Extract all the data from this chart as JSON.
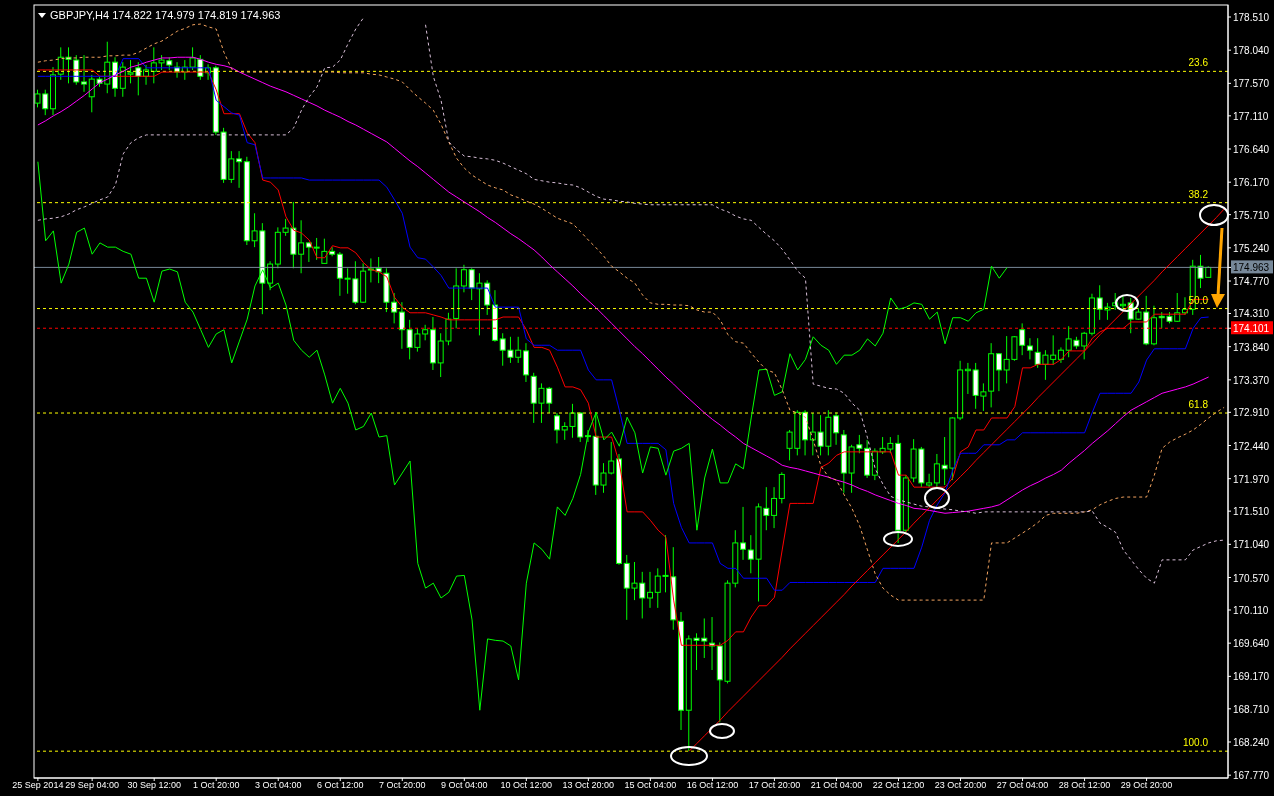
{
  "chart_data": {
    "type": "candlestick",
    "title": "GBPJPY,H4 174.822 174.979 174.819 174.963",
    "color": "#00ff00",
    "categories": [
      "25 Sep 2014",
      null,
      null,
      null,
      null,
      null,
      null,
      "29 Sep 04:00",
      null,
      null,
      null,
      null,
      null,
      null,
      null,
      "30 Sep 12:00",
      null,
      null,
      null,
      null,
      null,
      null,
      null,
      "1 Oct 20:00",
      null,
      null,
      null,
      null,
      null,
      null,
      null,
      "3 Oct 04:00",
      null,
      null,
      null,
      null,
      null,
      null,
      null,
      "6 Oct 12:00",
      null,
      null,
      null,
      null,
      null,
      null,
      null,
      "7 Oct 20:00",
      null,
      null,
      null,
      null,
      null,
      null,
      null,
      "9 Oct 04:00",
      null,
      null,
      null,
      null,
      null,
      null,
      null,
      "10 Oct 12:00",
      null,
      null,
      null,
      null,
      null,
      null,
      null,
      "13 Oct 20:00",
      null,
      null,
      null,
      null,
      null,
      null,
      null,
      "15 Oct 04:00",
      null,
      null,
      null,
      null,
      null,
      null,
      null,
      "16 Oct 12:00",
      null,
      null,
      null,
      null,
      null,
      null,
      null,
      "17 Oct 20:00",
      null,
      null,
      null,
      null,
      null,
      null,
      null,
      "21 Oct 04:00",
      null,
      null,
      null,
      null,
      null,
      null,
      null,
      "22 Oct 12:00",
      null,
      null,
      null,
      null,
      null,
      null,
      null,
      "23 Oct 20:00",
      null,
      null,
      null,
      null,
      null,
      null,
      null,
      "27 Oct 04:00",
      null,
      null,
      null,
      null,
      null,
      null,
      null,
      "28 Oct 12:00",
      null,
      null,
      null,
      null,
      null,
      null,
      null,
      "29 Oct 20:00",
      null,
      null,
      null,
      null,
      null,
      null,
      null,
      null,
      null,
      null
    ],
    "ohlc": [
      [
        177.29,
        177.48,
        177.23,
        177.42
      ],
      [
        177.42,
        177.48,
        177.12,
        177.21
      ],
      [
        177.21,
        177.8,
        177.12,
        177.69
      ],
      [
        177.7,
        178.08,
        177.62,
        177.94
      ],
      [
        177.94,
        178.08,
        177.57,
        177.91
      ],
      [
        177.9,
        177.97,
        177.55,
        177.59
      ],
      [
        177.59,
        177.97,
        177.45,
        177.56
      ],
      [
        177.38,
        177.69,
        177.16,
        177.63
      ],
      [
        177.63,
        177.67,
        177.52,
        177.57
      ],
      [
        177.56,
        178.16,
        177.43,
        177.87
      ],
      [
        177.87,
        177.94,
        177.38,
        177.5
      ],
      [
        177.5,
        177.87,
        177.38,
        177.8
      ],
      [
        177.7,
        177.9,
        177.57,
        177.72
      ],
      [
        177.79,
        177.87,
        177.4,
        177.67
      ],
      [
        177.67,
        177.83,
        177.55,
        177.76
      ],
      [
        177.74,
        178.08,
        177.57,
        177.86
      ],
      [
        177.86,
        177.97,
        177.76,
        177.9
      ],
      [
        177.89,
        177.94,
        177.76,
        177.83
      ],
      [
        177.8,
        177.87,
        177.65,
        177.73
      ],
      [
        177.73,
        177.9,
        177.62,
        177.8
      ],
      [
        177.8,
        178.08,
        177.76,
        177.93
      ],
      [
        177.91,
        177.97,
        177.62,
        177.67
      ],
      [
        177.72,
        177.84,
        177.62,
        177.79
      ],
      [
        177.79,
        177.82,
        176.84,
        176.88
      ],
      [
        176.88,
        176.94,
        176.16,
        176.21
      ],
      [
        176.21,
        176.61,
        176.16,
        176.5
      ],
      [
        176.5,
        176.61,
        176.09,
        176.46
      ],
      [
        176.46,
        176.53,
        175.28,
        175.34
      ],
      [
        175.34,
        175.73,
        175.25,
        175.48
      ],
      [
        175.48,
        175.59,
        174.3,
        174.74
      ],
      [
        174.74,
        175.05,
        174.64,
        175.01
      ],
      [
        175.01,
        175.53,
        174.95,
        175.46
      ],
      [
        175.46,
        175.65,
        175.41,
        175.52
      ],
      [
        175.52,
        175.89,
        174.95,
        175.15
      ],
      [
        175.15,
        175.63,
        174.88,
        175.31
      ],
      [
        175.31,
        175.32,
        175.04,
        175.25
      ],
      [
        175.24,
        175.38,
        175.07,
        175.25
      ],
      [
        175.02,
        175.37,
        175.02,
        175.19
      ],
      [
        175.19,
        175.25,
        175.12,
        175.15
      ],
      [
        175.15,
        175.18,
        174.56,
        174.81
      ],
      [
        174.8,
        174.95,
        174.59,
        174.81
      ],
      [
        174.8,
        175.05,
        174.44,
        174.47
      ],
      [
        174.47,
        175.02,
        174.46,
        174.91
      ],
      [
        174.93,
        175.09,
        174.75,
        174.94
      ],
      [
        174.95,
        175.11,
        174.74,
        174.9
      ],
      [
        174.88,
        174.95,
        174.33,
        174.47
      ],
      [
        174.47,
        174.6,
        174.17,
        174.33
      ],
      [
        174.33,
        174.47,
        173.81,
        174.08
      ],
      [
        174.08,
        174.22,
        173.66,
        173.83
      ],
      [
        173.83,
        174.1,
        173.77,
        174.02
      ],
      [
        174.02,
        174.15,
        173.93,
        174.08
      ],
      [
        174.08,
        174.26,
        173.51,
        173.61
      ],
      [
        173.61,
        174.03,
        173.41,
        173.92
      ],
      [
        173.92,
        174.32,
        173.86,
        174.23
      ],
      [
        174.24,
        174.95,
        174.1,
        174.7
      ],
      [
        174.7,
        175.0,
        174.61,
        174.93
      ],
      [
        174.93,
        174.95,
        174.5,
        174.67
      ],
      [
        174.66,
        174.88,
        174.0,
        174.74
      ],
      [
        174.74,
        174.78,
        174.29,
        174.43
      ],
      [
        174.43,
        174.64,
        173.91,
        173.93
      ],
      [
        173.95,
        174.03,
        173.57,
        173.79
      ],
      [
        173.79,
        173.98,
        173.61,
        173.69
      ],
      [
        173.69,
        173.98,
        173.61,
        173.79
      ],
      [
        173.78,
        173.89,
        173.34,
        173.44
      ],
      [
        173.42,
        173.47,
        172.76,
        173.04
      ],
      [
        173.04,
        173.32,
        172.76,
        173.25
      ],
      [
        173.25,
        173.27,
        172.9,
        173.04
      ],
      [
        172.86,
        172.9,
        172.47,
        172.66
      ],
      [
        172.66,
        172.77,
        172.52,
        172.71
      ],
      [
        172.71,
        173.03,
        172.55,
        172.9
      ],
      [
        172.9,
        172.91,
        172.49,
        172.56
      ],
      [
        172.57,
        172.66,
        172.49,
        172.58
      ],
      [
        172.57,
        172.91,
        171.74,
        171.88
      ],
      [
        171.88,
        172.19,
        171.77,
        172.05
      ],
      [
        172.05,
        172.49,
        172.03,
        172.22
      ],
      [
        172.25,
        172.32,
        170.75,
        170.77
      ],
      [
        170.77,
        170.89,
        169.97,
        170.42
      ],
      [
        170.42,
        170.79,
        170.25,
        170.49
      ],
      [
        170.49,
        170.65,
        169.99,
        170.28
      ],
      [
        170.28,
        170.65,
        170.14,
        170.36
      ],
      [
        170.36,
        170.7,
        170.14,
        170.59
      ],
      [
        170.59,
        171.17,
        170.36,
        170.6
      ],
      [
        170.58,
        171.0,
        169.83,
        169.97
      ],
      [
        169.95,
        170.08,
        168.41,
        168.69
      ],
      [
        168.69,
        169.75,
        168.11,
        169.7
      ],
      [
        169.71,
        169.78,
        169.26,
        169.68
      ],
      [
        169.71,
        169.99,
        169.43,
        169.67
      ],
      [
        169.64,
        170.01,
        169.26,
        169.6
      ],
      [
        169.6,
        169.65,
        168.52,
        169.12
      ],
      [
        169.1,
        170.53,
        169.07,
        170.49
      ],
      [
        170.49,
        171.24,
        170.43,
        171.06
      ],
      [
        171.06,
        171.57,
        170.82,
        170.97
      ],
      [
        170.96,
        171.17,
        170.63,
        170.83
      ],
      [
        170.83,
        171.62,
        170.23,
        171.57
      ],
      [
        171.55,
        171.85,
        171.24,
        171.45
      ],
      [
        171.45,
        171.85,
        171.27,
        171.69
      ],
      [
        171.69,
        172.06,
        171.62,
        172.03
      ],
      [
        172.4,
        172.66,
        172.23,
        172.63
      ],
      [
        172.4,
        172.94,
        172.3,
        172.91
      ],
      [
        172.91,
        172.94,
        172.3,
        172.52
      ],
      [
        172.52,
        172.9,
        172.3,
        172.63
      ],
      [
        172.63,
        172.87,
        172.3,
        172.43
      ],
      [
        172.43,
        172.94,
        172.3,
        172.84
      ],
      [
        172.86,
        172.91,
        172.45,
        172.62
      ],
      [
        172.59,
        172.66,
        171.77,
        172.05
      ],
      [
        172.05,
        172.45,
        171.77,
        172.42
      ],
      [
        172.45,
        172.59,
        172.33,
        172.4
      ],
      [
        172.4,
        172.52,
        171.98,
        172.02
      ],
      [
        172.02,
        172.4,
        171.95,
        172.36
      ],
      [
        172.35,
        172.56,
        172.32,
        172.4
      ],
      [
        172.39,
        172.56,
        172.33,
        172.47
      ],
      [
        172.47,
        172.59,
        171.06,
        171.24
      ],
      [
        171.24,
        172.02,
        171.2,
        171.98
      ],
      [
        171.98,
        172.53,
        171.92,
        172.39
      ],
      [
        172.39,
        172.42,
        171.85,
        171.91
      ],
      [
        171.88,
        172.04,
        171.85,
        171.91
      ],
      [
        171.91,
        172.32,
        171.85,
        172.18
      ],
      [
        172.16,
        172.56,
        171.88,
        172.11
      ],
      [
        172.12,
        172.84,
        171.95,
        172.83
      ],
      [
        172.83,
        173.64,
        172.8,
        173.51
      ],
      [
        173.5,
        173.61,
        173.17,
        173.52
      ],
      [
        173.51,
        173.61,
        172.96,
        173.15
      ],
      [
        173.14,
        173.32,
        172.93,
        173.2
      ],
      [
        173.21,
        173.89,
        172.98,
        173.74
      ],
      [
        173.74,
        173.75,
        173.21,
        173.51
      ],
      [
        173.51,
        173.99,
        173.32,
        173.66
      ],
      [
        173.66,
        173.99,
        173.64,
        173.98
      ],
      [
        174.08,
        174.17,
        173.72,
        173.86
      ],
      [
        173.85,
        173.96,
        173.66,
        173.79
      ],
      [
        173.76,
        173.96,
        173.54,
        173.59
      ],
      [
        173.59,
        173.79,
        173.37,
        173.72
      ],
      [
        173.66,
        174.0,
        173.58,
        173.72
      ],
      [
        173.66,
        173.83,
        173.61,
        173.79
      ],
      [
        173.79,
        174.13,
        173.69,
        173.95
      ],
      [
        173.93,
        173.98,
        173.81,
        173.85
      ],
      [
        173.85,
        174.05,
        173.66,
        174.03
      ],
      [
        174.03,
        174.59,
        174.0,
        174.53
      ],
      [
        174.53,
        174.71,
        174.22,
        174.37
      ],
      [
        174.36,
        174.46,
        174.22,
        174.4
      ],
      [
        174.42,
        174.6,
        174.36,
        174.46
      ],
      [
        174.42,
        174.56,
        174.36,
        174.44
      ],
      [
        174.46,
        174.53,
        174.03,
        174.23
      ],
      [
        174.23,
        174.39,
        174.22,
        174.33
      ],
      [
        174.33,
        174.56,
        173.86,
        173.88
      ],
      [
        173.88,
        174.42,
        173.86,
        174.25
      ],
      [
        174.27,
        174.33,
        174.1,
        174.25
      ],
      [
        174.27,
        174.33,
        174.17,
        174.2
      ],
      [
        174.2,
        174.6,
        174.19,
        174.32
      ],
      [
        174.32,
        174.54,
        174.29,
        174.37
      ],
      [
        174.37,
        175.07,
        174.29,
        174.98
      ],
      [
        174.98,
        175.14,
        174.67,
        174.81
      ],
      [
        174.822,
        174.979,
        174.819,
        174.963
      ],
      null,
      null
    ],
    "series": [
      {
        "type": "line",
        "color": "#ff0000",
        "values": [
          177.76,
          177.76,
          177.76,
          177.76,
          177.76,
          177.76,
          177.76,
          177.76,
          177.67,
          177.67,
          177.67,
          177.67,
          177.67,
          177.67,
          177.67,
          177.67,
          177.73,
          177.73,
          177.73,
          177.73,
          177.73,
          177.73,
          177.73,
          177.48,
          177.14,
          177.14,
          177.14,
          176.87,
          176.73,
          176.2,
          176.17,
          176.06,
          175.68,
          175.49,
          175.45,
          175.35,
          175.1,
          175.1,
          175.27,
          175.24,
          175.24,
          175.17,
          175.03,
          174.93,
          174.9,
          174.83,
          174.54,
          174.4,
          174.32,
          174.32,
          174.32,
          174.29,
          174.26,
          174.22,
          174.22,
          174.22,
          174.22,
          174.22,
          174.22,
          174.22,
          174.26,
          174.26,
          174.26,
          174.08,
          173.83,
          173.83,
          173.79,
          173.55,
          173.27,
          173.27,
          173.23,
          173.04,
          172.56,
          172.56,
          172.56,
          172.19,
          171.5,
          171.5,
          171.5,
          171.38,
          171.24,
          171.14,
          170.25,
          169.61,
          169.61,
          169.61,
          169.61,
          169.61,
          169.61,
          169.68,
          169.8,
          169.8,
          170.01,
          170.17,
          170.17,
          170.29,
          170.96,
          171.62,
          171.62,
          171.62,
          171.62,
          172.13,
          172.19,
          172.3,
          172.35,
          172.35,
          172.35,
          172.35,
          172.35,
          172.35,
          172.35,
          172.02,
          172.02,
          171.85,
          171.85,
          171.85,
          171.85,
          171.85,
          171.98,
          172.35,
          172.42,
          172.66,
          172.66,
          172.83,
          172.83,
          172.83,
          172.99,
          173.54,
          173.54,
          173.59,
          173.59,
          173.59,
          173.66,
          173.78,
          173.78,
          173.78,
          173.96,
          174.05,
          174.1,
          174.1,
          174.1,
          174.19,
          174.19,
          174.19,
          174.3,
          174.3,
          174.3,
          174.3,
          174.3,
          174.51,
          174.51,
          174.51,
          null,
          null
        ]
      },
      {
        "type": "line",
        "color": "#0000ff",
        "values": [
          177.67,
          177.67,
          177.67,
          177.67,
          177.67,
          177.67,
          177.67,
          177.67,
          177.67,
          177.67,
          177.67,
          177.92,
          177.92,
          177.92,
          177.79,
          177.79,
          177.79,
          177.79,
          177.79,
          177.79,
          177.79,
          177.79,
          177.79,
          177.33,
          177.24,
          177.15,
          177.12,
          176.73,
          176.7,
          176.23,
          176.23,
          176.23,
          176.23,
          176.23,
          176.23,
          176.2,
          176.2,
          176.2,
          176.2,
          176.2,
          176.2,
          176.2,
          176.2,
          176.2,
          176.2,
          176.1,
          175.92,
          175.73,
          175.25,
          175.1,
          175.08,
          174.97,
          174.85,
          174.67,
          174.67,
          174.67,
          174.67,
          174.67,
          174.67,
          174.4,
          174.4,
          174.4,
          174.4,
          173.95,
          173.86,
          173.86,
          173.86,
          173.79,
          173.79,
          173.79,
          173.79,
          173.51,
          173.37,
          173.37,
          173.37,
          172.94,
          172.47,
          172.47,
          172.47,
          172.47,
          172.47,
          172.38,
          171.62,
          171.28,
          171.06,
          171.06,
          171.06,
          171.06,
          170.77,
          170.7,
          170.7,
          170.56,
          170.56,
          170.56,
          170.56,
          170.39,
          170.39,
          170.5,
          170.5,
          170.5,
          170.5,
          170.5,
          170.5,
          170.5,
          170.5,
          170.5,
          170.5,
          170.5,
          170.5,
          170.7,
          170.7,
          170.7,
          170.7,
          170.7,
          171.0,
          171.38,
          171.6,
          171.77,
          172.09,
          172.33,
          172.33,
          172.33,
          172.45,
          172.45,
          172.45,
          172.52,
          172.52,
          172.62,
          172.62,
          172.62,
          172.62,
          172.62,
          172.62,
          172.62,
          172.62,
          172.62,
          172.91,
          173.18,
          173.18,
          173.18,
          173.18,
          173.18,
          173.34,
          173.65,
          173.81,
          173.81,
          173.81,
          173.81,
          173.81,
          174.1,
          174.25,
          174.26,
          null,
          null
        ]
      },
      {
        "type": "line",
        "color": "#ff00ff",
        "values": [
          176.98,
          177.04,
          177.11,
          177.17,
          177.24,
          177.32,
          177.4,
          177.49,
          177.58,
          177.63,
          177.69,
          177.74,
          177.8,
          177.83,
          177.87,
          177.9,
          177.93,
          177.93,
          177.94,
          177.94,
          177.94,
          177.91,
          177.87,
          177.84,
          177.82,
          177.79,
          177.73,
          177.68,
          177.63,
          177.58,
          177.53,
          177.49,
          177.45,
          177.4,
          177.35,
          177.3,
          177.25,
          177.19,
          177.14,
          177.09,
          177.03,
          176.98,
          176.92,
          176.86,
          176.8,
          176.74,
          176.65,
          176.56,
          176.47,
          176.39,
          176.3,
          176.21,
          176.12,
          176.03,
          175.96,
          175.89,
          175.82,
          175.75,
          175.67,
          175.6,
          175.52,
          175.44,
          175.37,
          175.29,
          175.21,
          175.11,
          175.0,
          174.9,
          174.8,
          174.7,
          174.59,
          174.49,
          174.39,
          174.28,
          174.17,
          174.06,
          173.95,
          173.84,
          173.74,
          173.63,
          173.52,
          173.41,
          173.31,
          173.2,
          173.1,
          173.0,
          172.9,
          172.81,
          172.73,
          172.64,
          172.56,
          172.47,
          172.41,
          172.35,
          172.29,
          172.23,
          172.16,
          172.13,
          172.11,
          172.08,
          172.05,
          172.02,
          171.99,
          171.95,
          171.92,
          171.88,
          171.83,
          171.79,
          171.74,
          171.7,
          171.66,
          171.62,
          171.59,
          171.55,
          171.54,
          171.52,
          171.5,
          171.48,
          171.49,
          171.5,
          171.51,
          171.53,
          171.55,
          171.57,
          171.6,
          171.67,
          171.74,
          171.81,
          171.87,
          171.92,
          171.98,
          172.03,
          172.09,
          172.19,
          172.28,
          172.37,
          172.47,
          172.56,
          172.65,
          172.75,
          172.85,
          172.94,
          173.0,
          173.06,
          173.12,
          173.18,
          173.21,
          173.24,
          173.27,
          173.31,
          173.36,
          173.41,
          null,
          null
        ]
      },
      {
        "type": "line",
        "color": "#00ff00",
        "values": [
          176.46,
          175.34,
          175.48,
          174.74,
          175.01,
          175.46,
          175.52,
          175.15,
          175.31,
          175.25,
          175.25,
          175.19,
          175.15,
          174.81,
          174.81,
          174.47,
          174.91,
          174.94,
          174.9,
          174.47,
          174.33,
          174.08,
          173.83,
          174.02,
          174.08,
          173.61,
          173.92,
          174.23,
          174.7,
          174.93,
          174.67,
          174.74,
          174.43,
          173.93,
          173.79,
          173.69,
          173.79,
          173.44,
          173.04,
          173.25,
          173.04,
          172.66,
          172.71,
          172.9,
          172.56,
          172.58,
          171.88,
          172.05,
          172.22,
          170.77,
          170.42,
          170.49,
          170.28,
          170.36,
          170.59,
          170.6,
          169.97,
          168.69,
          169.7,
          169.68,
          169.67,
          169.6,
          169.12,
          170.49,
          171.06,
          170.97,
          170.83,
          171.57,
          171.45,
          171.69,
          172.03,
          172.63,
          172.91,
          172.52,
          172.63,
          172.43,
          172.84,
          172.62,
          172.05,
          172.42,
          172.4,
          172.02,
          172.36,
          172.4,
          172.47,
          171.24,
          171.98,
          172.39,
          171.91,
          171.91,
          172.18,
          172.11,
          172.83,
          173.51,
          173.52,
          173.15,
          173.2,
          173.74,
          173.51,
          173.66,
          173.98,
          173.86,
          173.79,
          173.59,
          173.72,
          173.72,
          173.79,
          173.95,
          173.85,
          174.03,
          174.53,
          174.37,
          174.4,
          174.46,
          174.44,
          174.23,
          174.33,
          173.88,
          174.25,
          174.25,
          174.2,
          174.32,
          174.37,
          174.98,
          174.81,
          174.96,
          null,
          null,
          null,
          null,
          null,
          null,
          null,
          null,
          null,
          null,
          null,
          null,
          null,
          null,
          null,
          null,
          null,
          null,
          null,
          null,
          null,
          null,
          null,
          null,
          null,
          null,
          null,
          null
        ]
      },
      {
        "type": "line",
        "color": "#f4a460",
        "line_style": "dashed",
        "values": [
          177.87,
          177.89,
          177.9,
          177.92,
          177.93,
          177.93,
          177.94,
          177.94,
          177.94,
          177.96,
          177.96,
          177.97,
          177.97,
          178.01,
          178.07,
          178.13,
          178.17,
          178.24,
          178.31,
          178.35,
          178.4,
          178.41,
          178.37,
          178.34,
          178.01,
          177.77,
          177.73,
          177.73,
          177.73,
          177.73,
          177.73,
          177.73,
          177.73,
          177.73,
          177.73,
          177.73,
          177.73,
          177.73,
          177.73,
          177.72,
          177.72,
          177.72,
          177.72,
          177.7,
          177.69,
          177.66,
          177.63,
          177.59,
          177.48,
          177.38,
          177.29,
          177.19,
          176.99,
          176.74,
          176.51,
          176.37,
          176.27,
          176.2,
          176.13,
          176.09,
          176.06,
          175.99,
          175.95,
          175.9,
          175.86,
          175.8,
          175.73,
          175.66,
          175.62,
          175.58,
          175.47,
          175.35,
          175.24,
          175.12,
          174.98,
          174.9,
          174.81,
          174.74,
          174.57,
          174.46,
          174.44,
          174.44,
          174.43,
          174.43,
          174.42,
          174.36,
          174.33,
          174.33,
          174.22,
          174.01,
          173.91,
          173.89,
          173.75,
          173.62,
          173.51,
          173.47,
          173.23,
          172.94,
          172.9,
          172.84,
          172.52,
          172.15,
          171.99,
          171.95,
          171.74,
          171.55,
          171.3,
          170.96,
          170.62,
          170.42,
          170.32,
          170.25,
          170.25,
          170.25,
          170.25,
          170.25,
          170.25,
          170.25,
          170.25,
          170.25,
          170.25,
          170.25,
          170.25,
          171.06,
          171.06,
          171.06,
          171.13,
          171.2,
          171.27,
          171.35,
          171.45,
          171.48,
          171.48,
          171.48,
          171.48,
          171.5,
          171.53,
          171.6,
          171.65,
          171.69,
          171.71,
          171.71,
          171.71,
          171.71,
          172.02,
          172.4,
          172.49,
          172.55,
          172.6,
          172.66,
          172.74,
          172.83,
          172.91,
          172.98
        ]
      },
      {
        "type": "line",
        "color": "#d8bfd8",
        "line_style": "dashed",
        "values": [
          175.63,
          175.65,
          175.66,
          175.68,
          175.72,
          175.78,
          175.82,
          175.87,
          175.92,
          175.96,
          176.13,
          176.57,
          176.73,
          176.8,
          176.84,
          176.84,
          176.84,
          176.84,
          176.84,
          176.84,
          176.84,
          176.84,
          176.84,
          176.84,
          176.84,
          176.84,
          176.84,
          176.84,
          176.84,
          176.84,
          176.84,
          176.84,
          176.84,
          176.94,
          177.19,
          177.38,
          177.52,
          177.79,
          177.8,
          177.9,
          178.13,
          178.34,
          178.5,
          null,
          null,
          null,
          null,
          null,
          null,
          null,
          178.4,
          177.67,
          177.33,
          176.74,
          176.63,
          176.54,
          176.53,
          176.51,
          176.5,
          176.48,
          176.44,
          176.39,
          176.34,
          176.29,
          176.21,
          176.19,
          176.17,
          176.16,
          176.14,
          176.13,
          176.09,
          176.03,
          175.97,
          175.93,
          175.92,
          175.9,
          175.89,
          175.87,
          175.86,
          175.85,
          175.85,
          175.85,
          175.85,
          175.85,
          175.85,
          175.85,
          175.85,
          175.85,
          175.79,
          175.75,
          175.69,
          175.65,
          175.63,
          175.53,
          175.43,
          175.34,
          175.22,
          175.07,
          174.91,
          174.81,
          173.31,
          173.28,
          173.25,
          173.24,
          173.18,
          173.04,
          172.94,
          172.55,
          172.11,
          171.89,
          171.72,
          171.67,
          171.64,
          171.61,
          171.58,
          171.57,
          171.55,
          171.54,
          171.53,
          171.51,
          171.5,
          171.48,
          171.5,
          171.5,
          171.5,
          171.5,
          171.5,
          171.5,
          171.5,
          171.5,
          171.5,
          171.5,
          171.5,
          171.5,
          171.5,
          171.5,
          171.51,
          171.34,
          171.28,
          171.21,
          170.96,
          170.82,
          170.68,
          170.56,
          170.49,
          170.82,
          170.82,
          170.82,
          170.82,
          170.96,
          171.01,
          171.06,
          171.09,
          171.1
        ]
      },
      {
        "type": "line",
        "color": "#ff0000",
        "values": [
          null,
          null,
          null,
          null,
          null,
          null,
          null,
          null,
          null,
          null,
          null,
          null,
          null,
          null,
          null,
          null,
          null,
          null,
          null,
          null,
          null,
          null,
          null,
          null,
          null,
          null,
          null,
          null,
          null,
          null,
          null,
          null,
          null,
          null,
          null,
          null,
          null,
          null,
          null,
          null,
          null,
          null,
          null,
          null,
          null,
          null,
          null,
          null,
          null,
          null,
          null,
          null,
          null,
          null,
          null,
          null,
          null,
          null,
          null,
          null,
          null,
          null,
          null,
          null,
          null,
          null,
          null,
          null,
          null,
          null,
          null,
          null,
          null,
          null,
          null,
          null,
          null,
          null,
          null,
          null,
          null,
          null,
          null,
          null,
          168.11,
          168.22,
          168.33,
          168.44,
          168.55,
          168.67,
          168.78,
          168.89,
          169.0,
          169.11,
          169.22,
          169.33,
          169.44,
          169.56,
          169.67,
          169.78,
          169.89,
          170.0,
          170.11,
          170.22,
          170.33,
          170.45,
          170.56,
          170.67,
          170.78,
          170.89,
          171.0,
          171.11,
          171.22,
          171.34,
          171.45,
          171.56,
          171.67,
          171.78,
          171.89,
          172.0,
          172.11,
          172.23,
          172.34,
          172.45,
          172.56,
          172.67,
          172.78,
          172.89,
          173.0,
          173.12,
          173.23,
          173.34,
          173.45,
          173.56,
          173.67,
          173.78,
          173.89,
          174.01,
          174.12,
          174.23,
          174.34,
          174.45,
          174.56,
          174.67,
          174.78,
          174.9,
          175.01,
          175.12,
          175.23,
          175.34,
          175.45,
          175.56,
          175.67,
          175.79
        ]
      }
    ],
    "ylim": [
      167.73,
      178.68
    ],
    "yticks": [
      {
        "value": 167.77,
        "label": "167.770"
      },
      {
        "value": 168.24,
        "label": "168.240"
      },
      {
        "value": 168.71,
        "label": "168.710"
      },
      {
        "value": 169.17,
        "label": "169.170"
      },
      {
        "value": 169.64,
        "label": "169.640"
      },
      {
        "value": 170.11,
        "label": "170.110"
      },
      {
        "value": 170.57,
        "label": "170.570"
      },
      {
        "value": 171.04,
        "label": "171.040"
      },
      {
        "value": 171.51,
        "label": "171.510"
      },
      {
        "value": 171.97,
        "label": "171.970"
      },
      {
        "value": 172.44,
        "label": "172.440"
      },
      {
        "value": 172.91,
        "label": "172.910"
      },
      {
        "value": 173.37,
        "label": "173.370"
      },
      {
        "value": 173.84,
        "label": "173.840"
      },
      {
        "value": 174.31,
        "label": "174.310"
      },
      {
        "value": 174.77,
        "label": "174.770"
      },
      {
        "value": 175.24,
        "label": "175.240"
      },
      {
        "value": 175.71,
        "label": "175.710"
      },
      {
        "value": 176.17,
        "label": "176.170"
      },
      {
        "value": 176.64,
        "label": "176.640"
      },
      {
        "value": 177.11,
        "label": "177.110"
      },
      {
        "value": 177.57,
        "label": "177.570"
      },
      {
        "value": 178.04,
        "label": "178.040"
      },
      {
        "value": 178.51,
        "label": "178.510"
      },
      {
        "value": 174.963,
        "label": "174.963"
      },
      {
        "value": 174.101,
        "label": "174.101"
      }
    ],
    "ref_lines": [
      {
        "axis": "y",
        "value": 177.74,
        "color": "#ffff00",
        "line_style": "dashed"
      },
      {
        "axis": "y",
        "value": 175.88,
        "color": "#ffff00",
        "line_style": "dashed"
      },
      {
        "axis": "y",
        "value": 174.38,
        "color": "#ffff00",
        "line_style": "dashed"
      },
      {
        "axis": "y",
        "value": 172.9,
        "color": "#ffff00",
        "line_style": "dashed"
      },
      {
        "axis": "y",
        "value": 168.11,
        "color": "#ffff00",
        "line_style": "dashed"
      },
      {
        "axis": "y",
        "value": 174.963,
        "color": "#778899",
        "line_style": "solid"
      },
      {
        "axis": "y",
        "value": 174.101,
        "color": "#ff0000",
        "line_style": "dashed"
      }
    ],
    "annotations": [
      {
        "text": "23.6",
        "y": 177.74
      },
      {
        "text": "38.2",
        "y": 175.88
      },
      {
        "text": "50.0",
        "y": 174.38
      },
      {
        "text": "61.8",
        "y": 172.9
      },
      {
        "text": "100.0",
        "y": 168.11
      }
    ]
  }
}
